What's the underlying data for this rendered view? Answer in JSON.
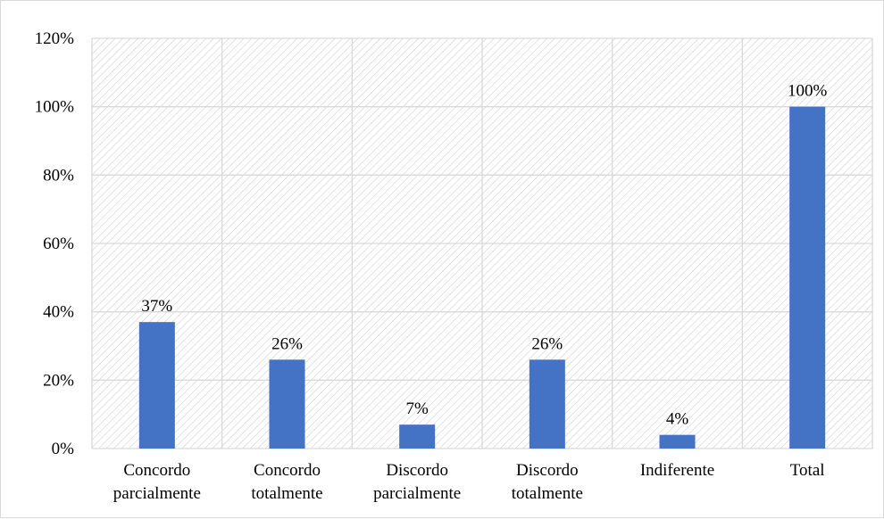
{
  "chart_data": {
    "type": "bar",
    "categories": [
      [
        "Concordo",
        "parcialmente"
      ],
      [
        "Concordo",
        "totalmente"
      ],
      [
        "Discordo",
        "parcialmente"
      ],
      [
        "Discordo",
        "totalmente"
      ],
      [
        "Indiferente"
      ],
      [
        "Total"
      ]
    ],
    "values": [
      37,
      26,
      7,
      26,
      4,
      100
    ],
    "data_labels": [
      "37%",
      "26%",
      "7%",
      "26%",
      "4%",
      "100%"
    ],
    "ylim": [
      0,
      120
    ],
    "y_ticks": [
      0,
      20,
      40,
      60,
      80,
      100,
      120
    ],
    "y_tick_labels": [
      "0%",
      "20%",
      "40%",
      "60%",
      "80%",
      "100%",
      "120%"
    ],
    "title": "",
    "xlabel": "",
    "ylabel": "",
    "grid": true,
    "legend": "none",
    "colors": {
      "bar": "#4472c4",
      "grid": "#d9d9d9",
      "hatch": "#d0d0d0",
      "text": "#000000"
    }
  }
}
